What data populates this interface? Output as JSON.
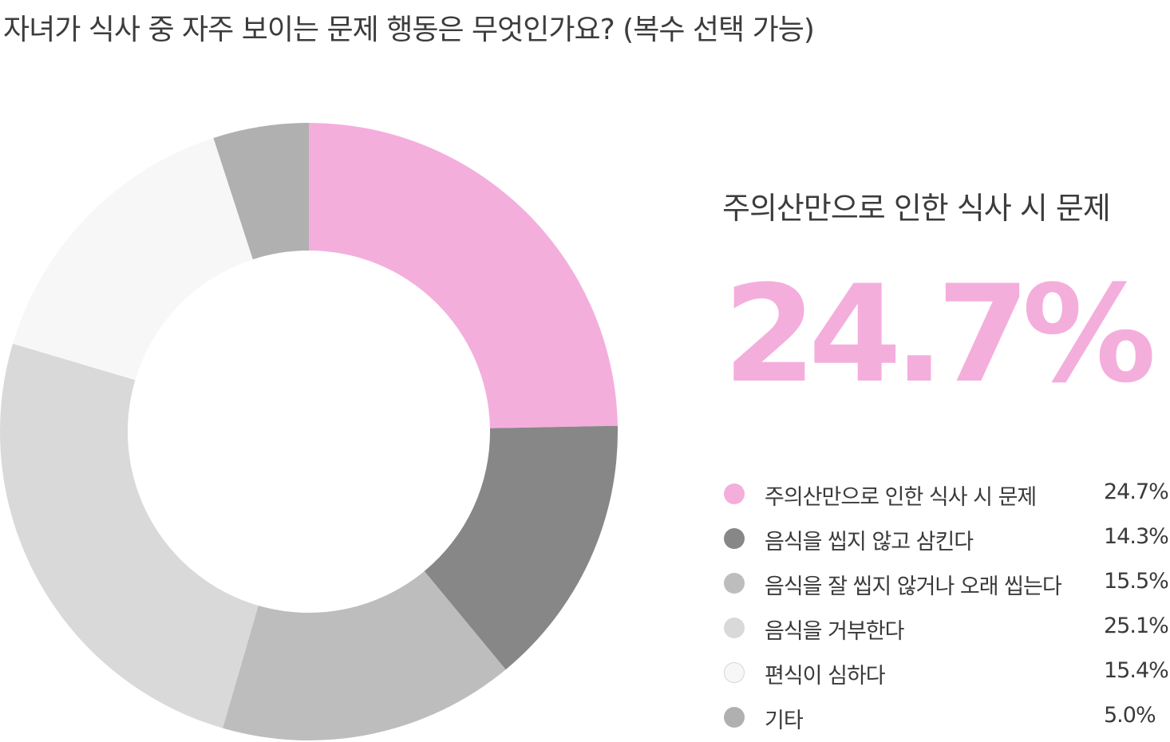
{
  "title": "자녀가 식사 중 자주 보이는 문제 행동은 무엇인가요? (복수 선택 가능)",
  "highlight": {
    "label": "주의산만으로 인한 식사 시 문제",
    "value": "24.7%",
    "color": "#f4aedc"
  },
  "chart_data": {
    "type": "pie",
    "variant": "donut",
    "title": "자녀가 식사 중 자주 보이는 문제 행동은 무엇인가요? (복수 선택 가능)",
    "start_angle": "top, clockwise",
    "legend_position": "right",
    "categories": [
      "주의산만으로 인한 식사 시 문제",
      "음식을 씹지 않고 삼킨다",
      "음식을 잘 씹지 않거나 오래 씹는다",
      "음식을 거부한다",
      "편식이 심하다",
      "기타"
    ],
    "values": [
      24.7,
      14.3,
      15.5,
      25.1,
      15.4,
      5.0
    ],
    "value_labels": [
      "24.7%",
      "14.3%",
      "15.5%",
      "25.1%",
      "15.4%",
      "5.0%"
    ],
    "colors": [
      "#f4aedc",
      "#878787",
      "#bdbdbd",
      "#d9d9d9",
      "#f7f7f7",
      "#b0b0b0"
    ]
  }
}
